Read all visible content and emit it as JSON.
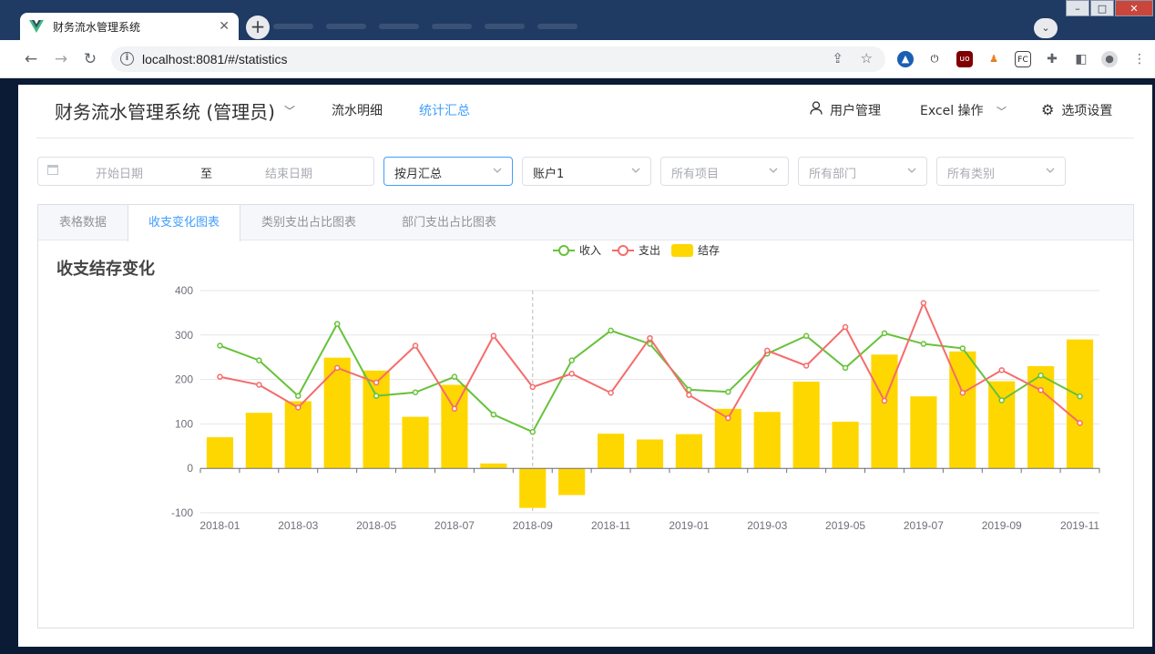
{
  "browser": {
    "tab_title": "财务流水管理系统",
    "url": "localhost:8081/#/statistics"
  },
  "header": {
    "brand": "财务流水管理系统 (管理员)",
    "menu": [
      {
        "label": "流水明细",
        "active": false
      },
      {
        "label": "统计汇总",
        "active": true
      }
    ],
    "right": {
      "user_manage": "用户管理",
      "excel": "Excel 操作",
      "settings": "选项设置"
    }
  },
  "filters": {
    "start_placeholder": "开始日期",
    "range_separator": "至",
    "end_placeholder": "结束日期",
    "group_by": "按月汇总",
    "account": "账户1",
    "project_placeholder": "所有项目",
    "department_placeholder": "所有部门",
    "category_placeholder": "所有类别"
  },
  "tabs": [
    {
      "label": "表格数据",
      "active": false
    },
    {
      "label": "收支变化图表",
      "active": true
    },
    {
      "label": "类别支出占比图表",
      "active": false
    },
    {
      "label": "部门支出占比图表",
      "active": false
    }
  ],
  "colors": {
    "income": "#67c23a",
    "expense": "#f56c6c",
    "balance": "#ffd700",
    "accent": "#409eff"
  },
  "chart_data": {
    "type": "line",
    "title": "收支结存变化",
    "categories": [
      "2018-01",
      "2018-02",
      "2018-03",
      "2018-04",
      "2018-05",
      "2018-06",
      "2018-07",
      "2018-08",
      "2018-09",
      "2018-10",
      "2018-11",
      "2018-12",
      "2019-01",
      "2019-02",
      "2019-03",
      "2019-04",
      "2019-05",
      "2019-06",
      "2019-07",
      "2019-08",
      "2019-09",
      "2019-10",
      "2019-11"
    ],
    "x_tick_labels": [
      "2018-01",
      "2018-03",
      "2018-05",
      "2018-07",
      "2018-09",
      "2018-11",
      "2019-01",
      "2019-03",
      "2019-05",
      "2019-07",
      "2019-09",
      "2019-11"
    ],
    "ylim": [
      -100,
      400
    ],
    "y_ticks": [
      -100,
      0,
      100,
      200,
      300,
      400
    ],
    "legend_position": "top-center",
    "grid": true,
    "highlighted_category": "2018-09",
    "series": [
      {
        "name": "收入",
        "type": "line",
        "values": [
          276,
          243,
          163,
          325,
          163,
          171,
          206,
          121,
          82,
          243,
          310,
          280,
          177,
          172,
          258,
          298,
          226,
          304,
          280,
          270,
          153,
          209,
          162
        ]
      },
      {
        "name": "支出",
        "type": "line",
        "values": [
          206,
          188,
          137,
          226,
          193,
          276,
          134,
          298,
          183,
          213,
          170,
          293,
          165,
          113,
          265,
          231,
          318,
          152,
          372,
          170,
          221,
          176,
          102
        ]
      },
      {
        "name": "结存",
        "type": "bar",
        "values": [
          70,
          125,
          151,
          249,
          220,
          116,
          188,
          11,
          -89,
          -60,
          78,
          65,
          77,
          134,
          127,
          195,
          105,
          256,
          162,
          263,
          196,
          230,
          290
        ]
      }
    ]
  }
}
